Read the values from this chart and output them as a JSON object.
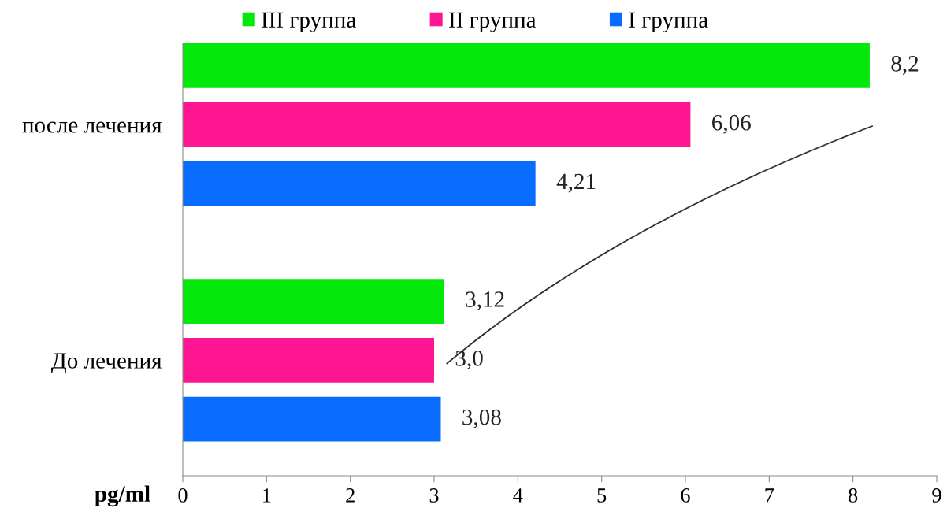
{
  "chart_data": {
    "type": "bar",
    "orientation": "horizontal",
    "categories": [
      "после лечения",
      "До лечения"
    ],
    "series": [
      {
        "name": "III группа",
        "color": "#05e80c",
        "values": [
          8.2,
          3.12
        ],
        "value_labels": [
          "8,2",
          "3,12"
        ]
      },
      {
        "name": "II группа",
        "color": "#fe1591",
        "values": [
          6.06,
          3.0
        ],
        "value_labels": [
          "6,06",
          "3,0"
        ]
      },
      {
        "name": "I группа",
        "color": "#0a6cff",
        "values": [
          4.21,
          3.08
        ],
        "value_labels": [
          "4,21",
          "3,08"
        ]
      }
    ],
    "xlabel": "pg/ml",
    "xlim": [
      0,
      9
    ],
    "xticks": [
      0,
      1,
      2,
      3,
      4,
      5,
      6,
      7,
      8,
      9
    ],
    "legend": "top",
    "grid": false
  }
}
